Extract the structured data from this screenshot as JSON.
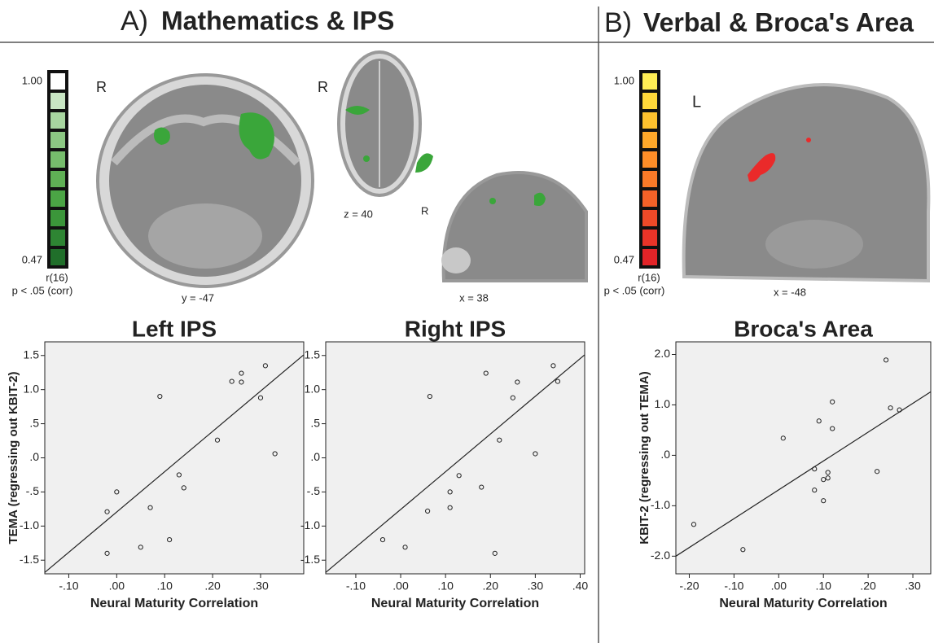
{
  "panels": [
    {
      "letter": "A)",
      "title": "Mathematics & IPS"
    },
    {
      "letter": "B)",
      "title": "Verbal & Broca's Area"
    }
  ],
  "colorbars": [
    {
      "max": "1.00",
      "min": "0.47",
      "stat": "r(16)",
      "p": "p < .05 (corr)",
      "colors": [
        "#ffffff",
        "#c9e6c4",
        "#a8d6a0",
        "#8cc883",
        "#76bd6c",
        "#5fb055",
        "#4ba545",
        "#3b963a",
        "#2e8533",
        "#206f2a"
      ]
    },
    {
      "max": "1.00",
      "min": "0.47",
      "stat": "r(16)",
      "p": "p < .05 (corr)",
      "colors": [
        "#ffee55",
        "#ffd83a",
        "#ffc22e",
        "#ffa82a",
        "#ff8e28",
        "#fa7a28",
        "#f46228",
        "#ef4a28",
        "#e93428",
        "#e32428"
      ]
    }
  ],
  "slices": [
    {
      "side": "R",
      "label": "y = -47"
    },
    {
      "side": "R",
      "label": "z = 40"
    },
    {
      "side": "R",
      "label": "x = 38"
    },
    {
      "side": "L",
      "label": "x = -48"
    }
  ],
  "chart_data": [
    {
      "type": "scatter",
      "title": "Left IPS",
      "x_label": "Neural Maturity Correlation",
      "y_label": "TEMA (regressing out KBIT-2)",
      "x": [
        0.31,
        0.26,
        0.26,
        0.24,
        0.3,
        0.09,
        0.21,
        0.33,
        0.13,
        0.14,
        0.0,
        -0.02,
        0.07,
        0.11,
        0.05,
        -0.02
      ],
      "values": [
        1.35,
        1.24,
        1.11,
        1.12,
        0.88,
        0.9,
        0.26,
        0.06,
        -0.25,
        -0.44,
        -0.5,
        -0.79,
        -0.73,
        -1.2,
        -1.31,
        -1.4
      ],
      "fit": {
        "x": [
          -0.15,
          0.39
        ],
        "y": [
          -1.68,
          1.51
        ]
      },
      "xlim": [
        -0.15,
        0.39
      ],
      "ylim": [
        -1.7,
        1.7
      ],
      "xticks": [
        {
          "value": -0.1,
          "label": "-.10"
        },
        {
          "value": 0,
          "label": ".00"
        },
        {
          "value": 0.1,
          "label": ".10"
        },
        {
          "value": 0.2,
          "label": ".20"
        },
        {
          "value": 0.3,
          "label": ".30"
        }
      ],
      "yticks": [
        1.5,
        {
          "value": 1,
          "label": "1.0"
        },
        {
          "value": 0.5,
          "label": ".5"
        },
        {
          "value": 0,
          "label": ".0"
        },
        {
          "value": -0.5,
          "label": "-.5"
        },
        {
          "value": -1,
          "label": "-1.0"
        },
        -1.5
      ]
    },
    {
      "type": "scatter",
      "title": "Right IPS",
      "x_label": "Neural Maturity Correlation",
      "x": [
        0.34,
        0.19,
        0.26,
        0.065,
        0.25,
        0.35,
        0.22,
        0.3,
        0.13,
        0.11,
        0.18,
        0.11,
        0.06,
        -0.04,
        0.01,
        0.21
      ],
      "values": [
        1.35,
        1.24,
        1.11,
        0.9,
        0.88,
        1.12,
        0.26,
        0.06,
        -0.26,
        -0.5,
        -0.43,
        -0.73,
        -0.78,
        -1.2,
        -1.31,
        -1.4
      ],
      "fit": {
        "x": [
          -0.167,
          0.41
        ],
        "y": [
          -1.68,
          1.51
        ]
      },
      "xlim": [
        -0.167,
        0.41
      ],
      "ylim": [
        -1.7,
        1.7
      ],
      "xticks": [
        {
          "value": -0.1,
          "label": "-.10"
        },
        {
          "value": 0,
          "label": ".00"
        },
        {
          "value": 0.1,
          "label": ".10"
        },
        {
          "value": 0.2,
          "label": ".20"
        },
        {
          "value": 0.3,
          "label": ".30"
        },
        {
          "value": 0.4,
          "label": ".40"
        }
      ],
      "yticks": [
        1.5,
        {
          "value": 1,
          "label": "1.0"
        },
        {
          "value": 0.5,
          "label": ".5"
        },
        {
          "value": 0,
          "label": ".0"
        },
        {
          "value": -0.5,
          "label": "-.5"
        },
        {
          "value": -1,
          "label": "-1.0"
        },
        -1.5
      ]
    },
    {
      "type": "scatter",
      "title": "Broca's Area",
      "x_label": "Neural Maturity Correlation",
      "y_label": "KBIT-2 (regressing out TEMA)",
      "x": [
        0.24,
        0.25,
        0.27,
        0.01,
        0.09,
        0.12,
        0.12,
        0.08,
        0.11,
        0.1,
        0.11,
        0.08,
        0.1,
        0.22,
        -0.19,
        -0.08
      ],
      "values": [
        1.89,
        0.94,
        0.9,
        0.34,
        0.68,
        1.06,
        0.53,
        -0.27,
        -0.34,
        -0.48,
        -0.45,
        -0.69,
        -0.9,
        -0.32,
        -1.37,
        -1.87
      ],
      "fit": {
        "x": [
          -0.23,
          0.34
        ],
        "y": [
          -2.0,
          1.26
        ]
      },
      "xlim": [
        -0.23,
        0.34
      ],
      "ylim": [
        -2.35,
        2.25
      ],
      "xticks": [
        {
          "value": -0.2,
          "label": "-.20"
        },
        {
          "value": -0.1,
          "label": "-.10"
        },
        {
          "value": 0,
          "label": ".00"
        },
        {
          "value": 0.1,
          "label": ".10"
        },
        {
          "value": 0.2,
          "label": ".20"
        },
        {
          "value": 0.3,
          "label": ".30"
        }
      ],
      "yticks": [
        {
          "value": 2,
          "label": "2.0"
        },
        {
          "value": 1,
          "label": "1.0"
        },
        {
          "value": 0,
          "label": ".0"
        },
        {
          "value": -1,
          "label": "-1.0"
        },
        {
          "value": -2,
          "label": "-2.0"
        }
      ]
    }
  ]
}
